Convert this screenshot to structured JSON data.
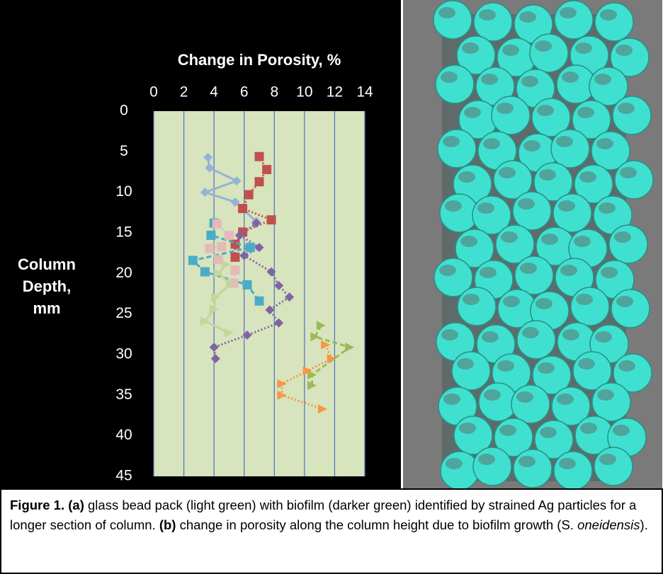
{
  "chart_data": {
    "type": "scatter",
    "xlabel": "Change in Porosity, %",
    "ylabel": "Column Depth, mm",
    "xlim": [
      0,
      14
    ],
    "xticks": [
      0,
      2,
      4,
      6,
      8,
      10,
      12,
      14
    ],
    "ylim": [
      0,
      45
    ],
    "yticks": [
      0,
      5,
      10,
      15,
      20,
      25,
      30,
      35,
      40,
      45
    ],
    "y_inverted": true,
    "x_axis_position": "top",
    "grid": true,
    "series": [
      {
        "color": "#95b3d7",
        "marker": "diamond",
        "line_style": "solid",
        "x": [
          3.6,
          3.7,
          5.5,
          3.4,
          5.4,
          6.8
        ],
        "values": [
          5.7,
          7.0,
          8.6,
          10.0,
          11.2,
          13.6
        ]
      },
      {
        "color": "#c0504d",
        "marker": "square",
        "line_style": "dotted",
        "x": [
          7.0,
          7.5,
          7.0,
          6.3,
          5.9,
          7.8,
          5.9,
          5.4,
          5.4
        ],
        "values": [
          5.6,
          7.2,
          8.7,
          10.3,
          12.0,
          13.4,
          14.9,
          16.4,
          18.0
        ]
      },
      {
        "color": "#8064a2",
        "marker": "diamond",
        "line_style": "dotted",
        "x": [
          6.8,
          5.7,
          7.0,
          6.0,
          7.8,
          8.3,
          9.0,
          7.7,
          8.3,
          6.2,
          4.0,
          4.1
        ],
        "values": [
          13.8,
          15.3,
          16.8,
          17.8,
          19.8,
          21.5,
          22.9,
          24.5,
          26.1,
          27.6,
          29.1,
          30.5
        ]
      },
      {
        "color": "#4bacc6",
        "marker": "square",
        "line_style": "dashed",
        "x": [
          4.0,
          3.8,
          6.4,
          2.6,
          3.4,
          6.2,
          7.0
        ],
        "values": [
          13.8,
          15.3,
          16.8,
          18.4,
          19.8,
          21.4,
          23.4
        ]
      },
      {
        "color": "#e6b9b8",
        "marker": "square",
        "line_style": "dotted",
        "x": [
          4.2,
          5.0,
          4.5,
          3.7,
          4.3,
          5.4,
          5.3
        ],
        "values": [
          13.9,
          15.3,
          16.7,
          16.9,
          18.3,
          19.6,
          21.2
        ]
      },
      {
        "color": "#c3d69b",
        "marker": "triangle",
        "line_style": "solid",
        "x": [
          4.8,
          4.3,
          5.1,
          4.1,
          4.0,
          3.4,
          5.0
        ],
        "values": [
          18.9,
          20.0,
          21.3,
          22.9,
          24.4,
          25.9,
          27.3
        ]
      },
      {
        "color": "#9bbb59",
        "marker": "triangle",
        "line_style": "dashed",
        "x": [
          11.1,
          10.7,
          13.0,
          10.5,
          10.5
        ],
        "values": [
          26.4,
          27.8,
          29.1,
          32.5,
          33.8
        ]
      },
      {
        "color": "#f79646",
        "marker": "triangle",
        "line_style": "dotted",
        "x": [
          11.4,
          11.8,
          10.2,
          8.5,
          8.5,
          11.2
        ],
        "values": [
          28.8,
          30.5,
          32.0,
          33.6,
          35.0,
          36.7
        ]
      }
    ]
  },
  "caption": {
    "label": "Figure 1.",
    "a_marker": "(a)",
    "text_a": "glass bead pack (light green) with biofilm (darker green) identified by strained Ag particles for a longer section of column.",
    "b_marker": "(b)",
    "text_b": "change in porosity along the column height due to biofilm growth (S.",
    "species": "oneidensis",
    "end": ")."
  }
}
